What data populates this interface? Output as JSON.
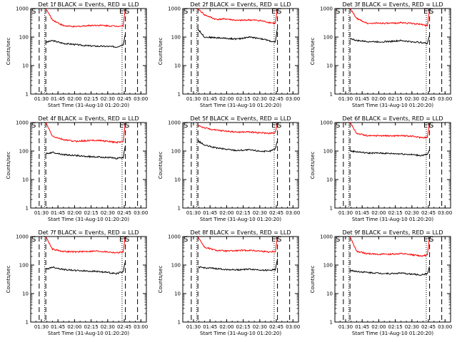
{
  "figure": {
    "ylabel": "Counts/sec",
    "xlabel": "Start Time (31-Aug-10 01:20:20)",
    "x_tick_labels": [
      "01:30",
      "01:45",
      "02:00",
      "02:15",
      "02:30",
      "02:45",
      "03:00"
    ],
    "y_tick_labels": [
      "1",
      "10",
      "100",
      "1000"
    ],
    "legend_text": "BLACK = Events, RED = LLD",
    "series": [
      {
        "name": "Events",
        "color": "#000000"
      },
      {
        "name": "LLD",
        "color": "#ff0000"
      }
    ]
  },
  "chart_data": [
    {
      "type": "line",
      "title": "Det 1f BLACK = Events, RED = LLD",
      "xlabel": "Start Time (31-Aug-10 01:20:20)",
      "ylabel": "Counts/sec",
      "xlim": [
        "01:20:20",
        "03:05:00"
      ],
      "ylim": [
        1,
        1000
      ],
      "yscale": "log",
      "x": [
        "01:34",
        "01:40",
        "01:50",
        "02:00",
        "02:10",
        "02:20",
        "02:30",
        "02:38",
        "02:44",
        "02:46"
      ],
      "series": [
        {
          "name": "Events",
          "values": [
            65,
            75,
            60,
            55,
            50,
            48,
            47,
            45,
            55,
            130
          ]
        },
        {
          "name": "LLD",
          "values": [
            1000,
            400,
            250,
            230,
            250,
            260,
            250,
            240,
            250,
            1000
          ]
        }
      ],
      "markers": {
        "S_left": "01:20:20",
        "E": "02:43",
        "S_right": "02:45"
      },
      "dashed_lines": [
        "01:28",
        "01:34",
        "02:46",
        "02:57"
      ],
      "dotted_lines": [
        "01:33",
        "02:43"
      ]
    },
    {
      "type": "line",
      "title": "Det 2f BLACK = Events, RED = LLD",
      "xlabel": "Start Time (31-Aug-10 01:20:20)",
      "ylabel": "Counts/sec",
      "xlim": [
        "01:20:20",
        "03:05:00"
      ],
      "ylim": [
        1,
        1000
      ],
      "yscale": "log",
      "x": [
        "01:34",
        "01:40",
        "01:50",
        "02:00",
        "02:10",
        "02:20",
        "02:30",
        "02:38",
        "02:44",
        "02:46"
      ],
      "series": [
        {
          "name": "Events",
          "values": [
            190,
            100,
            95,
            90,
            85,
            100,
            90,
            75,
            65,
            200
          ]
        },
        {
          "name": "LLD",
          "values": [
            1000,
            600,
            420,
            430,
            380,
            400,
            380,
            330,
            300,
            1000
          ]
        }
      ],
      "markers": {
        "S_left": "01:20:20",
        "E": "02:43",
        "S_right": "02:45"
      },
      "dashed_lines": [
        "01:28",
        "01:34",
        "02:46",
        "02:57"
      ],
      "dotted_lines": [
        "01:33",
        "02:43"
      ]
    },
    {
      "type": "line",
      "title": "Det 3f BLACK = Events, RED = LLD",
      "xlabel": "Start Time (31-Aug-10 01:20:20)",
      "ylabel": "Counts/sec",
      "xlim": [
        "01:20:20",
        "03:05:00"
      ],
      "ylim": [
        1,
        1000
      ],
      "yscale": "log",
      "x": [
        "01:34",
        "01:40",
        "01:50",
        "02:00",
        "02:10",
        "02:20",
        "02:30",
        "02:38",
        "02:44",
        "02:46"
      ],
      "series": [
        {
          "name": "Events",
          "values": [
            90,
            75,
            70,
            68,
            70,
            75,
            68,
            65,
            60,
            120
          ]
        },
        {
          "name": "LLD",
          "values": [
            1000,
            450,
            300,
            310,
            300,
            320,
            300,
            280,
            250,
            1000
          ]
        }
      ],
      "markers": {
        "S_left": "01:20:20",
        "E": "02:43",
        "S_right": "02:45"
      },
      "dashed_lines": [
        "01:28",
        "01:34",
        "02:46",
        "02:57"
      ],
      "dotted_lines": [
        "01:33",
        "02:43"
      ]
    },
    {
      "type": "line",
      "title": "Det 4f BLACK = Events, RED = LLD",
      "xlabel": "Start Time (31-Aug-10 01:20:20)",
      "ylabel": "Counts/sec",
      "xlim": [
        "01:20:20",
        "03:05:00"
      ],
      "ylim": [
        1,
        1000
      ],
      "yscale": "log",
      "x": [
        "01:34",
        "01:40",
        "01:50",
        "02:00",
        "02:10",
        "02:20",
        "02:30",
        "02:38",
        "02:44",
        "02:46"
      ],
      "series": [
        {
          "name": "Events",
          "values": [
            80,
            90,
            75,
            70,
            65,
            62,
            60,
            55,
            60,
            150
          ]
        },
        {
          "name": "LLD",
          "values": [
            1000,
            330,
            250,
            220,
            230,
            240,
            220,
            200,
            220,
            1000
          ]
        }
      ],
      "markers": {
        "S_left": "01:20:20",
        "E": "02:43",
        "S_right": "02:45"
      },
      "dashed_lines": [
        "01:28",
        "01:34",
        "02:46",
        "02:57"
      ],
      "dotted_lines": [
        "01:33",
        "02:43"
      ]
    },
    {
      "type": "line",
      "title": "Det 5f BLACK = Events, RED = LLD",
      "xlabel": "Start Time (31-Aug-10 01:20:20)",
      "ylabel": "Counts/sec",
      "xlim": [
        "01:20:20",
        "03:05:00"
      ],
      "ylim": [
        1,
        1000
      ],
      "yscale": "log",
      "x": [
        "01:34",
        "01:40",
        "01:50",
        "02:00",
        "02:10",
        "02:20",
        "02:30",
        "02:38",
        "02:44",
        "02:46"
      ],
      "series": [
        {
          "name": "Events",
          "values": [
            230,
            160,
            130,
            115,
            105,
            110,
            100,
            95,
            120,
            240
          ]
        },
        {
          "name": "LLD",
          "values": [
            800,
            650,
            540,
            500,
            460,
            470,
            440,
            420,
            430,
            1000
          ]
        }
      ],
      "markers": {
        "S_left": "01:20:20",
        "E": "02:43",
        "S_right": "02:45"
      },
      "dashed_lines": [
        "01:28",
        "01:34",
        "02:46",
        "02:57"
      ],
      "dotted_lines": [
        "01:33",
        "02:43"
      ]
    },
    {
      "type": "line",
      "title": "Det 6f BLACK = Events, RED = LLD",
      "xlabel": "Start Time (31-Aug-10 01:20:20)",
      "ylabel": "Counts/sec",
      "xlim": [
        "01:20:20",
        "03:05:00"
      ],
      "ylim": [
        1,
        1000
      ],
      "yscale": "log",
      "x": [
        "01:34",
        "01:40",
        "01:50",
        "02:00",
        "02:10",
        "02:20",
        "02:30",
        "02:38",
        "02:44",
        "02:46"
      ],
      "series": [
        {
          "name": "Events",
          "values": [
            100,
            95,
            85,
            85,
            82,
            80,
            75,
            70,
            75,
            110
          ]
        },
        {
          "name": "LLD",
          "values": [
            1000,
            420,
            340,
            350,
            340,
            350,
            330,
            300,
            300,
            1000
          ]
        }
      ],
      "markers": {
        "S_left": "01:20:20",
        "E": "02:43",
        "S_right": "02:45"
      },
      "dashed_lines": [
        "01:28",
        "01:34",
        "02:46",
        "02:57"
      ],
      "dotted_lines": [
        "01:33",
        "02:43"
      ]
    },
    {
      "type": "line",
      "title": "Det 7f BLACK = Events, RED = LLD",
      "xlabel": "Start Time (31-Aug-10 01:20:20)",
      "ylabel": "Counts/sec",
      "xlim": [
        "01:20:20",
        "03:05:00"
      ],
      "ylim": [
        1,
        1000
      ],
      "yscale": "log",
      "x": [
        "01:34",
        "01:40",
        "01:50",
        "02:00",
        "02:10",
        "02:20",
        "02:30",
        "02:38",
        "02:44",
        "02:46"
      ],
      "series": [
        {
          "name": "Events",
          "values": [
            70,
            85,
            70,
            65,
            62,
            60,
            55,
            50,
            60,
            130
          ]
        },
        {
          "name": "LLD",
          "values": [
            1000,
            360,
            300,
            290,
            300,
            310,
            290,
            270,
            290,
            1000
          ]
        }
      ],
      "markers": {
        "S_left": "01:20:20",
        "E": "02:43",
        "S_right": "02:45"
      },
      "dashed_lines": [
        "01:28",
        "01:34",
        "02:46",
        "02:57"
      ],
      "dotted_lines": [
        "01:33",
        "02:43"
      ]
    },
    {
      "type": "line",
      "title": "Det 8f BLACK = Events, RED = LLD",
      "xlabel": "Start Time (31-Aug-10 01:20:20)",
      "ylabel": "Counts/sec",
      "xlim": [
        "01:20:20",
        "03:05:00"
      ],
      "ylim": [
        1,
        1000
      ],
      "yscale": "log",
      "x": [
        "01:34",
        "01:40",
        "01:50",
        "02:00",
        "02:10",
        "02:20",
        "02:30",
        "02:38",
        "02:44",
        "02:46"
      ],
      "series": [
        {
          "name": "Events",
          "values": [
            85,
            80,
            75,
            70,
            68,
            72,
            68,
            65,
            70,
            160
          ]
        },
        {
          "name": "LLD",
          "values": [
            1000,
            420,
            330,
            310,
            320,
            330,
            310,
            290,
            300,
            1000
          ]
        }
      ],
      "markers": {
        "S_left": "01:20:20",
        "E": "02:43",
        "S_right": "02:45"
      },
      "dashed_lines": [
        "01:28",
        "01:34",
        "02:46",
        "02:57"
      ],
      "dotted_lines": [
        "01:33",
        "02:43"
      ]
    },
    {
      "type": "line",
      "title": "Det 9f BLACK = Events, RED = LLD",
      "xlabel": "Start Time (31-Aug-10 01:20:20)",
      "ylabel": "Counts/sec",
      "xlim": [
        "01:20:20",
        "03:05:00"
      ],
      "ylim": [
        1,
        1000
      ],
      "yscale": "log",
      "x": [
        "01:34",
        "01:40",
        "01:50",
        "02:00",
        "02:10",
        "02:20",
        "02:30",
        "02:38",
        "02:44",
        "02:46"
      ],
      "series": [
        {
          "name": "Events",
          "values": [
            65,
            60,
            55,
            52,
            50,
            52,
            48,
            45,
            50,
            90
          ]
        },
        {
          "name": "LLD",
          "values": [
            1000,
            300,
            250,
            240,
            240,
            250,
            230,
            210,
            220,
            1000
          ]
        }
      ],
      "markers": {
        "S_left": "01:20:20",
        "E": "02:43",
        "S_right": "02:45"
      },
      "dashed_lines": [
        "01:28",
        "01:34",
        "02:46",
        "02:57"
      ],
      "dotted_lines": [
        "01:33",
        "02:43"
      ]
    }
  ]
}
